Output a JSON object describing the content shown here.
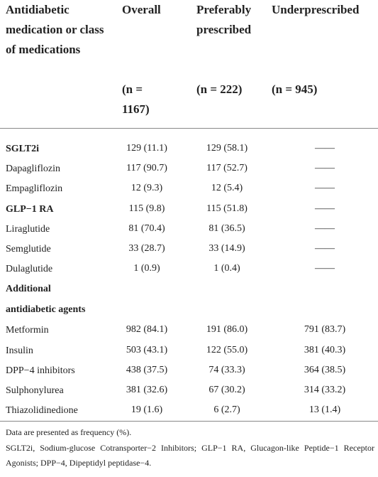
{
  "table": {
    "columns": [
      "Antidiabetic medication or class of medications",
      "Overall",
      "Preferably prescribed",
      "Underprescribed"
    ],
    "n": [
      "(n = 1167)",
      "(n = 222)",
      "(n = 945)"
    ],
    "rows": [
      {
        "label": "SGLT2i",
        "bold": true,
        "values": [
          "129 (11.1)",
          "129 (58.1)",
          "——"
        ]
      },
      {
        "label": "Dapagliflozin",
        "values": [
          "117 (90.7)",
          "117 (52.7)",
          "——"
        ]
      },
      {
        "label": "Empagliflozin",
        "values": [
          "12 (9.3)",
          "12 (5.4)",
          "——"
        ]
      },
      {
        "label": "GLP−1 RA",
        "bold": true,
        "values": [
          "115 (9.8)",
          "115 (51.8)",
          "——"
        ]
      },
      {
        "label": "Liraglutide",
        "values": [
          "81 (70.4)",
          "81 (36.5)",
          "——"
        ]
      },
      {
        "label": "Semglutide",
        "values": [
          "33 (28.7)",
          "33 (14.9)",
          "——"
        ]
      },
      {
        "label": "Dulaglutide",
        "values": [
          "1 (0.9)",
          "1 (0.4)",
          "——"
        ]
      },
      {
        "label": "Additional antidiabetic agents",
        "bold": true
      },
      {
        "label": "Metformin",
        "values": [
          "982 (84.1)",
          "191 (86.0)",
          "791 (83.7)"
        ]
      },
      {
        "label": "Insulin",
        "values": [
          "503 (43.1)",
          "122 (55.0)",
          "381 (40.3)"
        ]
      },
      {
        "label": "DPP−4 inhibitors",
        "values": [
          "438 (37.5)",
          "74 (33.3)",
          "364 (38.5)"
        ]
      },
      {
        "label": "Sulphonylurea",
        "values": [
          "381 (32.6)",
          "67 (30.2)",
          "314 (33.2)"
        ]
      },
      {
        "label": "Thiazolidinedione",
        "values": [
          "19 (1.6)",
          "6 (2.7)",
          "13 (1.4)"
        ]
      }
    ]
  },
  "footnotes": [
    "Data are presented as frequency (%).",
    "SGLT2i, Sodium-glucose Cotransporter−2 Inhibitors; GLP−1 RA, Glucagon-like Peptide−1 Receptor Agonists; DPP−4, Dipeptidyl peptidase−4."
  ]
}
